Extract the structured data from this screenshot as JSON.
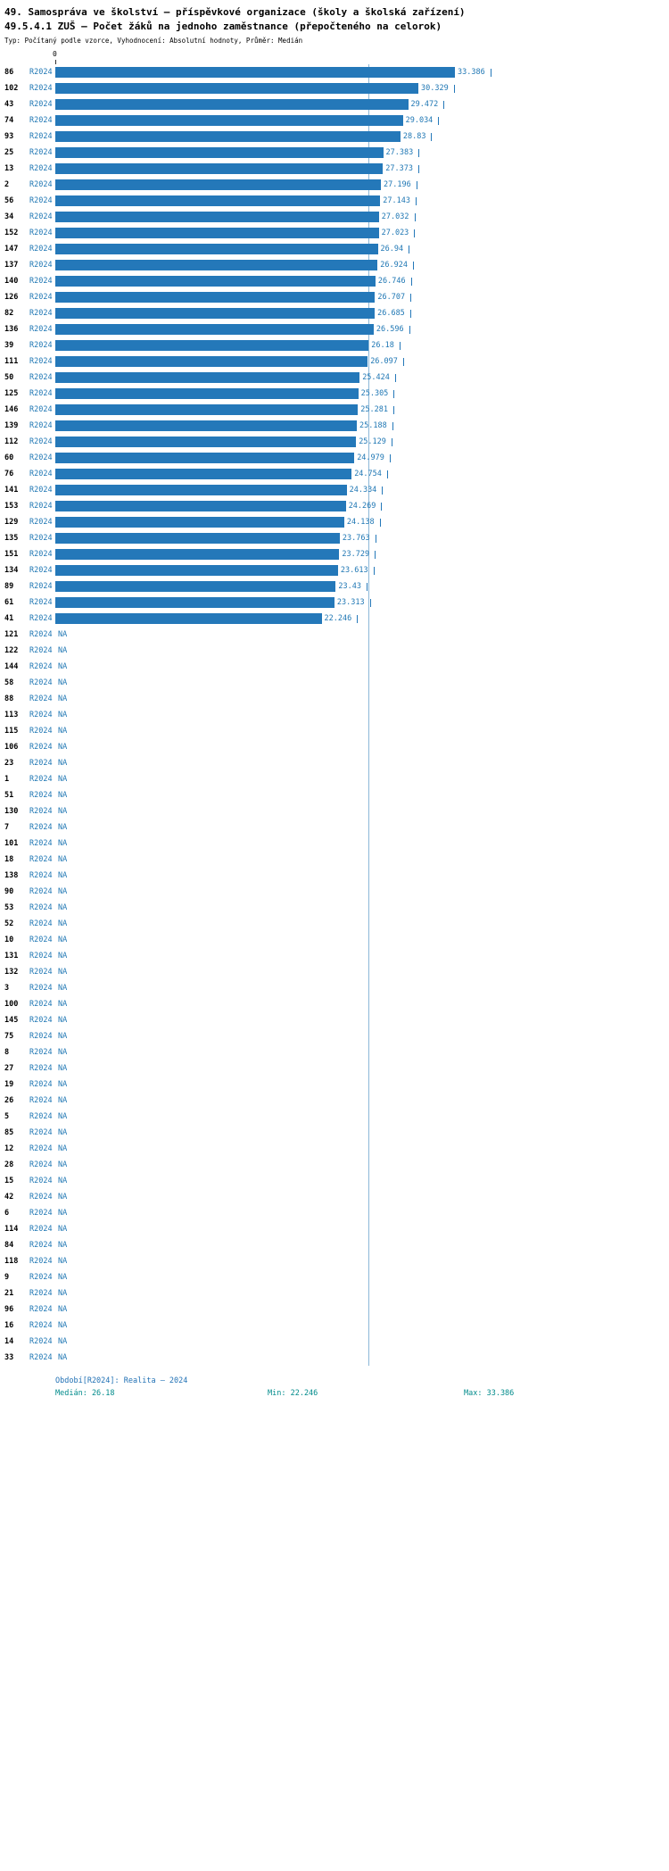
{
  "title": {
    "line1": "49. Samospráva ve školství – příspěvkové organizace (školy a školská zařízení)",
    "line2": "49.5.4.1 ZUŠ – Počet žáků na jednoho zaměstnance (přepočteného na celorok)",
    "line3": "Typ: Počítaný podle vzorce, Vyhodnocení: Absolutní hodnoty, Průměr: Medián"
  },
  "axis": {
    "zero_label": "0"
  },
  "chart_data": {
    "type": "bar",
    "orientation": "horizontal",
    "series_name": "R2024",
    "na_label": "NA",
    "median": 26.18,
    "xlim": [
      0,
      33.386
    ],
    "grid": false,
    "xlabel": "",
    "ylabel": "",
    "rows": [
      {
        "category": "86",
        "value": 33.386,
        "label": "33.386"
      },
      {
        "category": "102",
        "value": 30.329,
        "label": "30.329"
      },
      {
        "category": "43",
        "value": 29.472,
        "label": "29.472"
      },
      {
        "category": "74",
        "value": 29.034,
        "label": "29.034"
      },
      {
        "category": "93",
        "value": 28.83,
        "label": "28.83"
      },
      {
        "category": "25",
        "value": 27.383,
        "label": "27.383"
      },
      {
        "category": "13",
        "value": 27.373,
        "label": "27.373"
      },
      {
        "category": "2",
        "value": 27.196,
        "label": "27.196"
      },
      {
        "category": "56",
        "value": 27.143,
        "label": "27.143"
      },
      {
        "category": "34",
        "value": 27.032,
        "label": "27.032"
      },
      {
        "category": "152",
        "value": 27.023,
        "label": "27.023"
      },
      {
        "category": "147",
        "value": 26.94,
        "label": "26.94"
      },
      {
        "category": "137",
        "value": 26.924,
        "label": "26.924"
      },
      {
        "category": "140",
        "value": 26.746,
        "label": "26.746"
      },
      {
        "category": "126",
        "value": 26.707,
        "label": "26.707"
      },
      {
        "category": "82",
        "value": 26.685,
        "label": "26.685"
      },
      {
        "category": "136",
        "value": 26.596,
        "label": "26.596"
      },
      {
        "category": "39",
        "value": 26.18,
        "label": "26.18"
      },
      {
        "category": "111",
        "value": 26.097,
        "label": "26.097"
      },
      {
        "category": "50",
        "value": 25.424,
        "label": "25.424"
      },
      {
        "category": "125",
        "value": 25.305,
        "label": "25.305"
      },
      {
        "category": "146",
        "value": 25.281,
        "label": "25.281"
      },
      {
        "category": "139",
        "value": 25.188,
        "label": "25.188"
      },
      {
        "category": "112",
        "value": 25.129,
        "label": "25.129"
      },
      {
        "category": "60",
        "value": 24.979,
        "label": "24.979"
      },
      {
        "category": "76",
        "value": 24.754,
        "label": "24.754"
      },
      {
        "category": "141",
        "value": 24.334,
        "label": "24.334"
      },
      {
        "category": "153",
        "value": 24.269,
        "label": "24.269"
      },
      {
        "category": "129",
        "value": 24.138,
        "label": "24.138"
      },
      {
        "category": "135",
        "value": 23.763,
        "label": "23.763"
      },
      {
        "category": "151",
        "value": 23.729,
        "label": "23.729"
      },
      {
        "category": "134",
        "value": 23.613,
        "label": "23.613"
      },
      {
        "category": "89",
        "value": 23.43,
        "label": "23.43"
      },
      {
        "category": "61",
        "value": 23.313,
        "label": "23.313"
      },
      {
        "category": "41",
        "value": 22.246,
        "label": "22.246"
      },
      {
        "category": "121",
        "value": null,
        "label": "NA"
      },
      {
        "category": "122",
        "value": null,
        "label": "NA"
      },
      {
        "category": "144",
        "value": null,
        "label": "NA"
      },
      {
        "category": "58",
        "value": null,
        "label": "NA"
      },
      {
        "category": "88",
        "value": null,
        "label": "NA"
      },
      {
        "category": "113",
        "value": null,
        "label": "NA"
      },
      {
        "category": "115",
        "value": null,
        "label": "NA"
      },
      {
        "category": "106",
        "value": null,
        "label": "NA"
      },
      {
        "category": "23",
        "value": null,
        "label": "NA"
      },
      {
        "category": "1",
        "value": null,
        "label": "NA"
      },
      {
        "category": "51",
        "value": null,
        "label": "NA"
      },
      {
        "category": "130",
        "value": null,
        "label": "NA"
      },
      {
        "category": "7",
        "value": null,
        "label": "NA"
      },
      {
        "category": "101",
        "value": null,
        "label": "NA"
      },
      {
        "category": "18",
        "value": null,
        "label": "NA"
      },
      {
        "category": "138",
        "value": null,
        "label": "NA"
      },
      {
        "category": "90",
        "value": null,
        "label": "NA"
      },
      {
        "category": "53",
        "value": null,
        "label": "NA"
      },
      {
        "category": "52",
        "value": null,
        "label": "NA"
      },
      {
        "category": "10",
        "value": null,
        "label": "NA"
      },
      {
        "category": "131",
        "value": null,
        "label": "NA"
      },
      {
        "category": "132",
        "value": null,
        "label": "NA"
      },
      {
        "category": "3",
        "value": null,
        "label": "NA"
      },
      {
        "category": "100",
        "value": null,
        "label": "NA"
      },
      {
        "category": "145",
        "value": null,
        "label": "NA"
      },
      {
        "category": "75",
        "value": null,
        "label": "NA"
      },
      {
        "category": "8",
        "value": null,
        "label": "NA"
      },
      {
        "category": "27",
        "value": null,
        "label": "NA"
      },
      {
        "category": "19",
        "value": null,
        "label": "NA"
      },
      {
        "category": "26",
        "value": null,
        "label": "NA"
      },
      {
        "category": "5",
        "value": null,
        "label": "NA"
      },
      {
        "category": "85",
        "value": null,
        "label": "NA"
      },
      {
        "category": "12",
        "value": null,
        "label": "NA"
      },
      {
        "category": "28",
        "value": null,
        "label": "NA"
      },
      {
        "category": "15",
        "value": null,
        "label": "NA"
      },
      {
        "category": "42",
        "value": null,
        "label": "NA"
      },
      {
        "category": "6",
        "value": null,
        "label": "NA"
      },
      {
        "category": "114",
        "value": null,
        "label": "NA"
      },
      {
        "category": "84",
        "value": null,
        "label": "NA"
      },
      {
        "category": "118",
        "value": null,
        "label": "NA"
      },
      {
        "category": "9",
        "value": null,
        "label": "NA"
      },
      {
        "category": "21",
        "value": null,
        "label": "NA"
      },
      {
        "category": "96",
        "value": null,
        "label": "NA"
      },
      {
        "category": "16",
        "value": null,
        "label": "NA"
      },
      {
        "category": "14",
        "value": null,
        "label": "NA"
      },
      {
        "category": "33",
        "value": null,
        "label": "NA"
      }
    ]
  },
  "footer": {
    "period": "Období[R2024]: Realita – 2024",
    "median": "Medián: 26.18",
    "min": "Min: 22.246",
    "max": "Max: 33.386"
  },
  "colors": {
    "bar": "#2478b9",
    "value_text": "#1f77b4",
    "series_text": "#1f77b4",
    "median_line": "#8cb8d8",
    "footer_period": "#2171b5",
    "footer_stats": "#008b8b"
  }
}
